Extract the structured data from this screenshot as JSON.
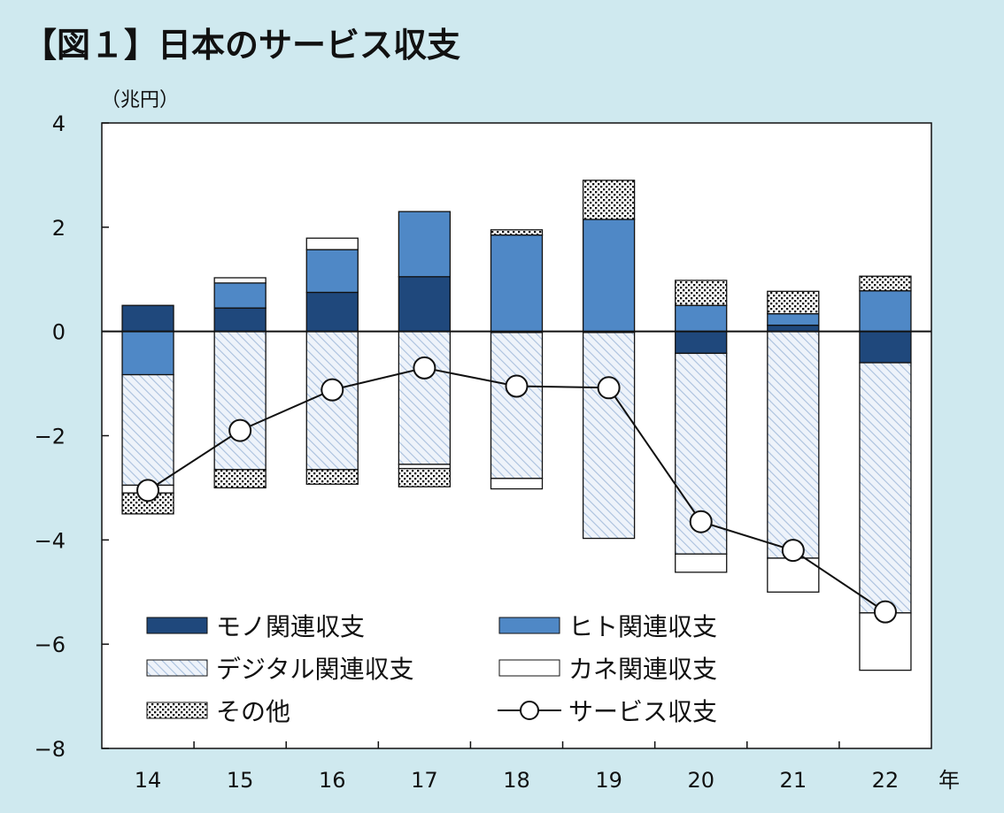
{
  "title": "【図１】日本のサービス収支",
  "unit_label": "（兆円）",
  "x_suffix": "年",
  "colors": {
    "background": "#cfe9ef",
    "mono": "#1f487c",
    "hito": "#4f88c6",
    "digital_hatch": "#a9c0dd",
    "kane": "#ffffff",
    "line": "#111111"
  },
  "chart_data": {
    "type": "bar",
    "stacked": true,
    "categories": [
      "14",
      "15",
      "16",
      "17",
      "18",
      "19",
      "20",
      "21",
      "22"
    ],
    "ylim": [
      -8,
      4
    ],
    "yticks": [
      4,
      2,
      0,
      -2,
      -4,
      -6,
      -8
    ],
    "series": [
      {
        "name": "モノ関連収支",
        "key": "mono",
        "values": [
          0.5,
          0.45,
          0.75,
          1.05,
          -0.02,
          -0.02,
          -0.42,
          0.12,
          -0.6
        ]
      },
      {
        "name": "ヒト関連収支",
        "key": "hito",
        "values": [
          -0.83,
          0.48,
          0.82,
          1.25,
          1.85,
          2.15,
          0.5,
          0.22,
          0.78
        ]
      },
      {
        "name": "デジタル関連収支",
        "key": "digital",
        "values": [
          -2.12,
          -2.65,
          -2.65,
          -2.55,
          -2.8,
          -3.95,
          -3.85,
          -4.35,
          -4.8
        ]
      },
      {
        "name": "カネ関連収支",
        "key": "kane",
        "values": [
          -0.15,
          0.1,
          0.22,
          -0.08,
          -0.2,
          0.0,
          -0.35,
          -0.65,
          -1.1
        ]
      },
      {
        "name": "その他",
        "key": "other",
        "values": [
          -0.4,
          -0.35,
          -0.28,
          -0.35,
          0.1,
          0.75,
          0.48,
          0.43,
          0.28
        ]
      }
    ],
    "line": {
      "name": "サービス収支",
      "values": [
        -3.05,
        -1.9,
        -1.12,
        -0.7,
        -1.05,
        -1.08,
        -3.65,
        -4.2,
        -5.38
      ]
    },
    "grid": false,
    "legend_position": "bottom-inside"
  }
}
